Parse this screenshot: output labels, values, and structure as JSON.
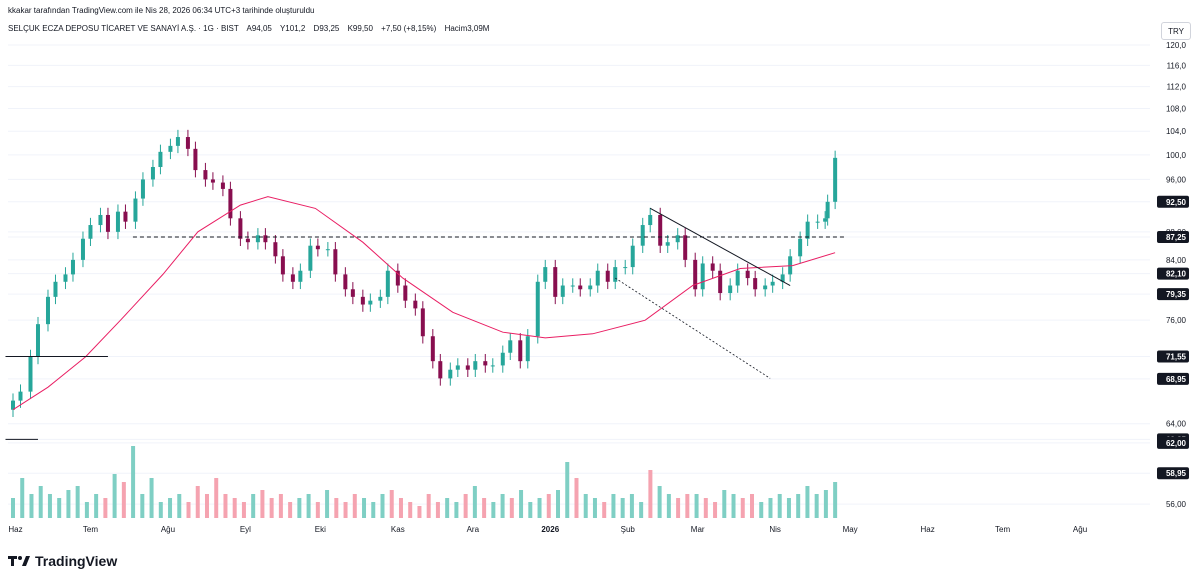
{
  "credit": "kkakar tarafından TradingView.com ile Nis 28, 2026 06:34 UTC+3 tarihinde oluşturuldu",
  "header": {
    "symbol": "SELÇUK ECZA DEPOSU TİCARET VE SANAYİ A.Ş. · 1G · BIST",
    "open": "A94,05",
    "high": "Y101,2",
    "low": "D93,25",
    "close": "K99,50",
    "change": "+7,50 (+8,15%)",
    "volume": "Hacim3,09M"
  },
  "currency": "TRY",
  "brand": "TradingView",
  "colors": {
    "up": "#26a69a",
    "down": "#880e4f",
    "vol_up": "#7fcfc4",
    "vol_down": "#f5a3b0",
    "ma": "#e91e63",
    "text": "#131722",
    "grid": "#f0f3fa"
  },
  "chart_data": {
    "type": "line",
    "title": "",
    "y_axis": {
      "scale": "log",
      "ticks": [
        "120,0",
        "116,0",
        "112,0",
        "108,0",
        "104,0",
        "100,0",
        "96,00",
        "92,50",
        "88,00",
        "87,25",
        "84,00",
        "82,10",
        "79,35",
        "76,00",
        "71,55",
        "68,95",
        "64,00",
        "62,35",
        "62,00",
        "58,95",
        "56,00"
      ],
      "range": [
        55,
        121
      ]
    },
    "x_axis": {
      "ticks": [
        "Haz",
        "Tem",
        "Ağu",
        "Eyl",
        "Eki",
        "Kas",
        "Ara",
        "2026",
        "Şub",
        "Mar",
        "Nis",
        "May",
        "Haz",
        "Tem",
        "Ağu"
      ]
    },
    "price_labels": [
      {
        "value": 92.5,
        "label": "92,50"
      },
      {
        "value": 87.25,
        "label": "87,25"
      },
      {
        "value": 82.1,
        "label": "82,10"
      },
      {
        "value": 79.35,
        "label": "79,35"
      },
      {
        "value": 71.55,
        "label": "71,55"
      },
      {
        "value": 68.95,
        "label": "68,95"
      },
      {
        "value": 62.35,
        "label": "62,35"
      },
      {
        "value": 62.0,
        "label": "62,00"
      },
      {
        "value": 58.95,
        "label": "58,95"
      }
    ],
    "close_path": [
      [
        "2025-06-02",
        66.5
      ],
      [
        "2025-06-05",
        67.5
      ],
      [
        "2025-06-09",
        71.5
      ],
      [
        "2025-06-12",
        75.5
      ],
      [
        "2025-06-16",
        79.0
      ],
      [
        "2025-06-19",
        81.0
      ],
      [
        "2025-06-23",
        82.0
      ],
      [
        "2025-06-26",
        84.0
      ],
      [
        "2025-06-30",
        87.0
      ],
      [
        "2025-07-03",
        89.0
      ],
      [
        "2025-07-07",
        90.5
      ],
      [
        "2025-07-10",
        88.0
      ],
      [
        "2025-07-14",
        91.0
      ],
      [
        "2025-07-17",
        89.5
      ],
      [
        "2025-07-21",
        93.0
      ],
      [
        "2025-07-24",
        96.0
      ],
      [
        "2025-07-28",
        98.0
      ],
      [
        "2025-07-31",
        100.5
      ],
      [
        "2025-08-04",
        101.5
      ],
      [
        "2025-08-07",
        103.0
      ],
      [
        "2025-08-11",
        101.0
      ],
      [
        "2025-08-14",
        97.5
      ],
      [
        "2025-08-18",
        96.0
      ],
      [
        "2025-08-21",
        95.5
      ],
      [
        "2025-08-25",
        94.5
      ],
      [
        "2025-08-28",
        90.0
      ],
      [
        "2025-09-01",
        87.0
      ],
      [
        "2025-09-04",
        86.5
      ],
      [
        "2025-09-08",
        87.5
      ],
      [
        "2025-09-11",
        86.5
      ],
      [
        "2025-09-15",
        84.5
      ],
      [
        "2025-09-18",
        82.0
      ],
      [
        "2025-09-22",
        81.0
      ],
      [
        "2025-09-25",
        82.5
      ],
      [
        "2025-09-29",
        86.0
      ],
      [
        "2025-10-02",
        85.5
      ],
      [
        "2025-10-06",
        85.5
      ],
      [
        "2025-10-09",
        82.0
      ],
      [
        "2025-10-13",
        80.0
      ],
      [
        "2025-10-16",
        79.0
      ],
      [
        "2025-10-20",
        78.0
      ],
      [
        "2025-10-23",
        78.5
      ],
      [
        "2025-10-27",
        79.0
      ],
      [
        "2025-10-30",
        82.5
      ],
      [
        "2025-11-03",
        80.5
      ],
      [
        "2025-11-06",
        78.5
      ],
      [
        "2025-11-10",
        77.5
      ],
      [
        "2025-11-13",
        74.0
      ],
      [
        "2025-11-17",
        71.0
      ],
      [
        "2025-11-20",
        69.0
      ],
      [
        "2025-11-24",
        70.0
      ],
      [
        "2025-11-27",
        70.5
      ],
      [
        "2025-12-01",
        70.0
      ],
      [
        "2025-12-04",
        71.0
      ],
      [
        "2025-12-08",
        70.5
      ],
      [
        "2025-12-11",
        70.5
      ],
      [
        "2025-12-15",
        72.0
      ],
      [
        "2025-12-18",
        73.5
      ],
      [
        "2025-12-22",
        71.0
      ],
      [
        "2025-12-25",
        74.0
      ],
      [
        "2025-12-29",
        81.0
      ],
      [
        "2026-01-01",
        83.0
      ],
      [
        "2026-01-05",
        79.0
      ],
      [
        "2026-01-08",
        80.5
      ],
      [
        "2026-01-12",
        80.5
      ],
      [
        "2026-01-15",
        80.0
      ],
      [
        "2026-01-19",
        80.5
      ],
      [
        "2026-01-22",
        82.5
      ],
      [
        "2026-01-26",
        81.0
      ],
      [
        "2026-01-29",
        83.0
      ],
      [
        "2026-02-02",
        83.0
      ],
      [
        "2026-02-05",
        86.0
      ],
      [
        "2026-02-09",
        89.0
      ],
      [
        "2026-02-12",
        90.5
      ],
      [
        "2026-02-16",
        86.0
      ],
      [
        "2026-02-19",
        86.5
      ],
      [
        "2026-02-23",
        87.5
      ],
      [
        "2026-02-26",
        84.0
      ],
      [
        "2026-03-02",
        80.0
      ],
      [
        "2026-03-05",
        83.5
      ],
      [
        "2026-03-09",
        82.5
      ],
      [
        "2026-03-12",
        79.5
      ],
      [
        "2026-03-16",
        80.5
      ],
      [
        "2026-03-19",
        82.5
      ],
      [
        "2026-03-23",
        81.5
      ],
      [
        "2026-03-26",
        80.0
      ],
      [
        "2026-03-30",
        80.5
      ],
      [
        "2026-04-02",
        81.0
      ],
      [
        "2026-04-06",
        82.0
      ],
      [
        "2026-04-09",
        84.5
      ],
      [
        "2026-04-13",
        87.0
      ],
      [
        "2026-04-16",
        89.5
      ],
      [
        "2026-04-20",
        89.5
      ],
      [
        "2026-04-23",
        90.0
      ],
      [
        "2026-04-24",
        92.5
      ],
      [
        "2026-04-27",
        99.5
      ]
    ],
    "moving_average": [
      [
        "2025-06-02",
        65.5
      ],
      [
        "2025-06-16",
        68.0
      ],
      [
        "2025-07-01",
        71.5
      ],
      [
        "2025-07-15",
        76.0
      ],
      [
        "2025-08-01",
        82.0
      ],
      [
        "2025-08-15",
        88.0
      ],
      [
        "2025-09-01",
        92.0
      ],
      [
        "2025-09-12",
        93.3
      ],
      [
        "2025-10-01",
        91.5
      ],
      [
        "2025-10-20",
        86.5
      ],
      [
        "2025-11-05",
        81.5
      ],
      [
        "2025-11-25",
        77.0
      ],
      [
        "2025-12-15",
        74.5
      ],
      [
        "2026-01-01",
        73.8
      ],
      [
        "2026-01-20",
        74.3
      ],
      [
        "2026-02-10",
        76.0
      ],
      [
        "2026-03-01",
        80.5
      ],
      [
        "2026-03-20",
        82.8
      ],
      [
        "2026-04-10",
        83.2
      ],
      [
        "2026-04-27",
        85.0
      ]
    ],
    "horizontal_levels": [
      {
        "value": 87.25,
        "style": "dashed",
        "from": "2025-07-20",
        "to": "2026-05-01"
      },
      {
        "value": 71.55,
        "style": "solid",
        "from": "2025-05-30",
        "to": "2025-07-10"
      },
      {
        "value": 62.35,
        "style": "solid",
        "from": "2025-05-30",
        "to": "2025-06-12"
      }
    ],
    "trend_lines": [
      {
        "from": [
          "2026-02-12",
          91.5
        ],
        "to": [
          "2026-04-09",
          80.5
        ],
        "style": "solid"
      },
      {
        "from": [
          "2026-01-29",
          81.5
        ],
        "to": [
          "2026-04-01",
          69.0
        ],
        "style": "dotted"
      }
    ],
    "volume_relative": [
      0.25,
      0.5,
      0.3,
      0.4,
      0.3,
      0.25,
      0.35,
      0.4,
      0.2,
      0.3,
      0.25,
      0.55,
      0.45,
      0.9,
      0.3,
      0.5,
      0.2,
      0.25,
      0.3,
      0.2,
      0.4,
      0.3,
      0.5,
      0.3,
      0.25,
      0.2,
      0.3,
      0.35,
      0.25,
      0.3,
      0.2,
      0.25,
      0.3,
      0.2,
      0.35,
      0.25,
      0.2,
      0.3,
      0.25,
      0.2,
      0.3,
      0.35,
      0.25,
      0.2,
      0.15,
      0.3,
      0.2,
      0.25,
      0.2,
      0.3,
      0.4,
      0.25,
      0.2,
      0.3,
      0.25,
      0.35,
      0.2,
      0.25,
      0.3,
      0.35,
      0.7,
      0.5,
      0.3,
      0.25,
      0.2,
      0.3,
      0.25,
      0.3,
      0.2,
      0.6,
      0.4,
      0.3,
      0.25,
      0.3,
      0.3,
      0.25,
      0.2,
      0.35,
      0.3,
      0.25,
      0.3,
      0.2,
      0.25,
      0.3,
      0.25,
      0.3,
      0.4,
      0.3,
      0.35,
      0.45
    ]
  }
}
